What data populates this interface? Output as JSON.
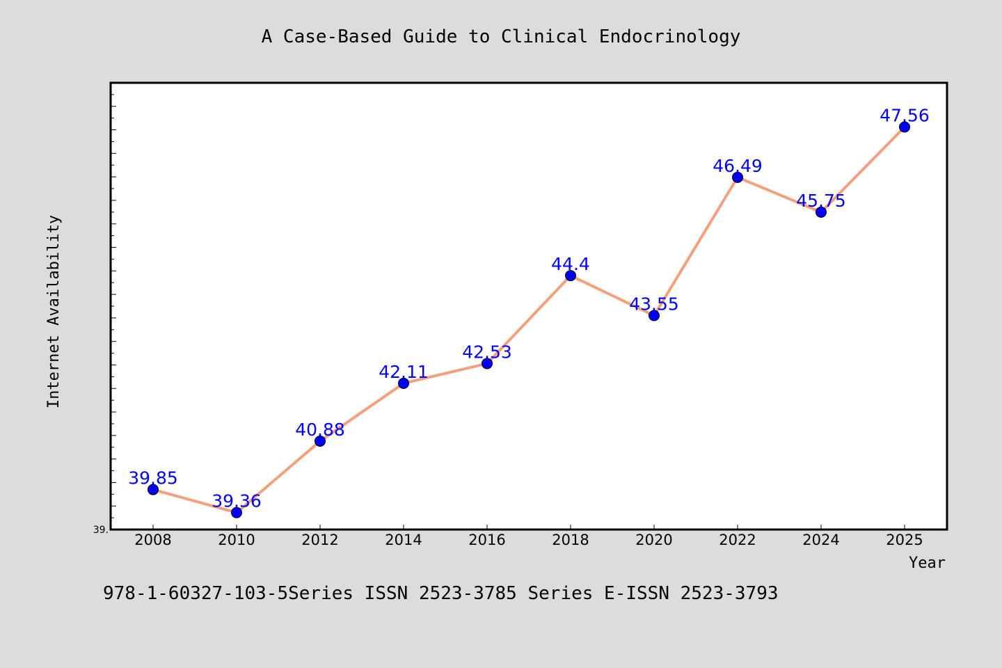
{
  "chart_data": {
    "type": "line",
    "title": "A Case-Based Guide to Clinical Endocrinology",
    "xlabel": "Year",
    "ylabel": "Internet Availability",
    "x": [
      "2008",
      "2010",
      "2012",
      "2014",
      "2016",
      "2018",
      "2020",
      "2022",
      "2024",
      "2025"
    ],
    "series": [
      {
        "values": [
          39.85,
          39.36,
          40.88,
          42.11,
          42.53,
          44.4,
          43.55,
          46.49,
          45.75,
          47.56
        ]
      }
    ],
    "data_labels": [
      "39.85",
      "39.36",
      "40.88",
      "42.11",
      "42.53",
      "44.4",
      "43.55",
      "46.49",
      "45.75",
      "47.56"
    ],
    "ylim": [
      39.0,
      48.5
    ],
    "y_tick_labels": [
      "39."
    ],
    "grid": false,
    "colors": {
      "line": "#f4a07a",
      "marker": "#0000ff",
      "label": "#0000ff",
      "background": "#dcdcdc",
      "plot_bg": "#ffffff"
    }
  },
  "footer": {
    "text": "978-1-60327-103-5Series ISSN 2523-3785 Series E-ISSN 2523-3793"
  }
}
